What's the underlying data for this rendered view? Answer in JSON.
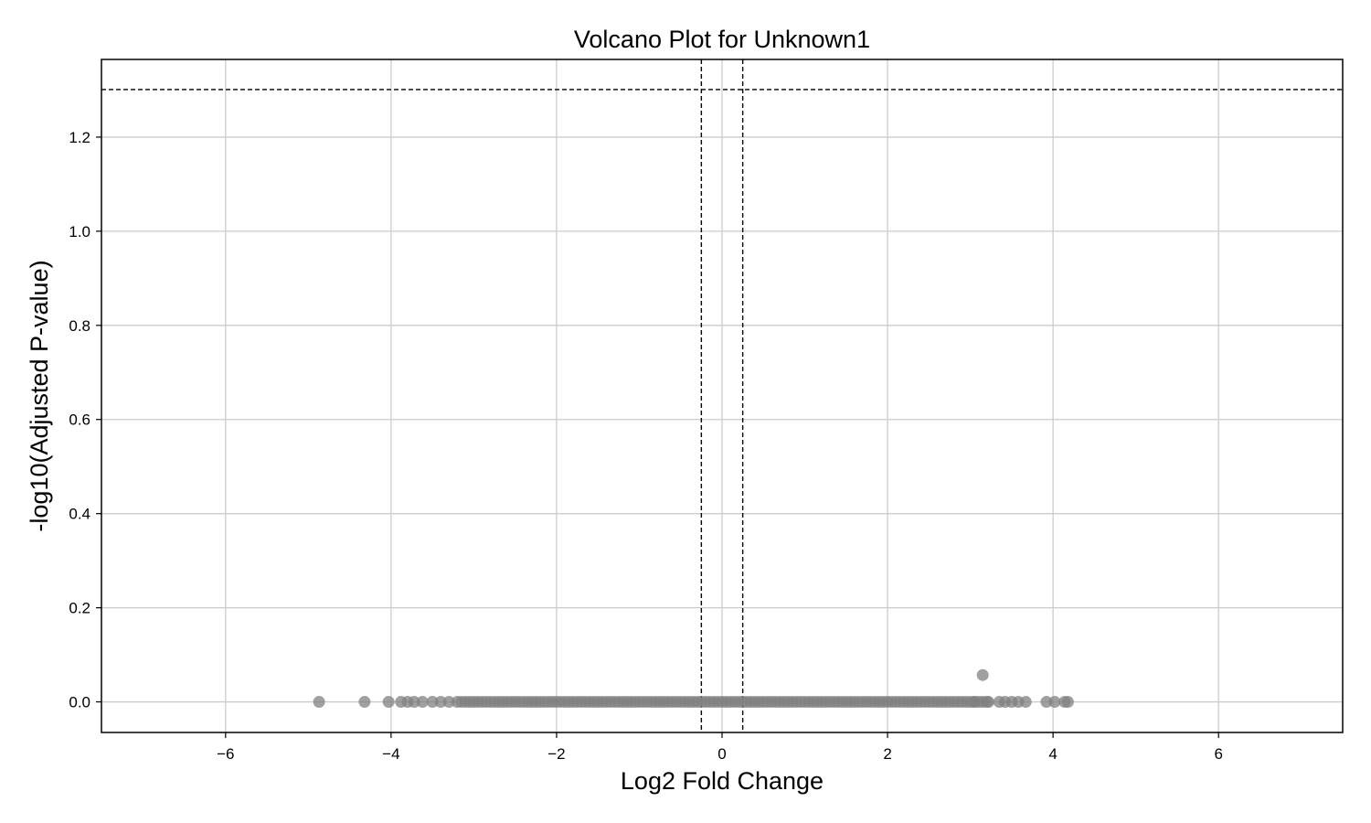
{
  "chart_data": {
    "type": "scatter",
    "title": "Volcano Plot for Unknown1",
    "xlabel": "Log2 Fold Change",
    "ylabel": "-log10(Adjusted P-value)",
    "xlim": [
      -7.5,
      7.5
    ],
    "ylim": [
      -0.065,
      1.365
    ],
    "xticks": [
      -6,
      -4,
      -2,
      0,
      2,
      4,
      6
    ],
    "xtick_labels": [
      "−6",
      "−4",
      "−2",
      "0",
      "2",
      "4",
      "6"
    ],
    "yticks": [
      0.0,
      0.2,
      0.4,
      0.6,
      0.8,
      1.0,
      1.2
    ],
    "ytick_labels": [
      "0.0",
      "0.2",
      "0.4",
      "0.6",
      "0.8",
      "1.0",
      "1.2"
    ],
    "grid": true,
    "thresholds": {
      "fold_change_lines": [
        -0.25,
        0.25
      ],
      "pvalue_line": 1.301
    },
    "colors": {
      "points": "#808080",
      "grid": "#cccccc",
      "threshold": "#000000"
    },
    "outlier_points": [
      {
        "x": -4.87,
        "y": 0.0
      },
      {
        "x": -4.32,
        "y": 0.0
      },
      {
        "x": -4.03,
        "y": 0.0
      },
      {
        "x": -3.88,
        "y": 0.0
      },
      {
        "x": -3.8,
        "y": 0.0
      },
      {
        "x": -3.72,
        "y": 0.0
      },
      {
        "x": -3.62,
        "y": 0.0
      },
      {
        "x": -3.5,
        "y": 0.0
      },
      {
        "x": -3.4,
        "y": 0.0
      },
      {
        "x": -3.3,
        "y": 0.0
      },
      {
        "x": 3.05,
        "y": 0.0
      },
      {
        "x": 3.15,
        "y": 0.057
      },
      {
        "x": 3.22,
        "y": 0.0
      },
      {
        "x": 3.35,
        "y": 0.0
      },
      {
        "x": 3.42,
        "y": 0.0
      },
      {
        "x": 3.5,
        "y": 0.0
      },
      {
        "x": 3.58,
        "y": 0.0
      },
      {
        "x": 3.67,
        "y": 0.0
      },
      {
        "x": 3.92,
        "y": 0.0
      },
      {
        "x": 4.02,
        "y": 0.0
      },
      {
        "x": 4.14,
        "y": 0.0
      },
      {
        "x": 4.18,
        "y": 0.0
      }
    ],
    "dense_band": {
      "x_range": [
        -3.2,
        3.2
      ],
      "y": 0.0,
      "step": 0.05
    }
  }
}
